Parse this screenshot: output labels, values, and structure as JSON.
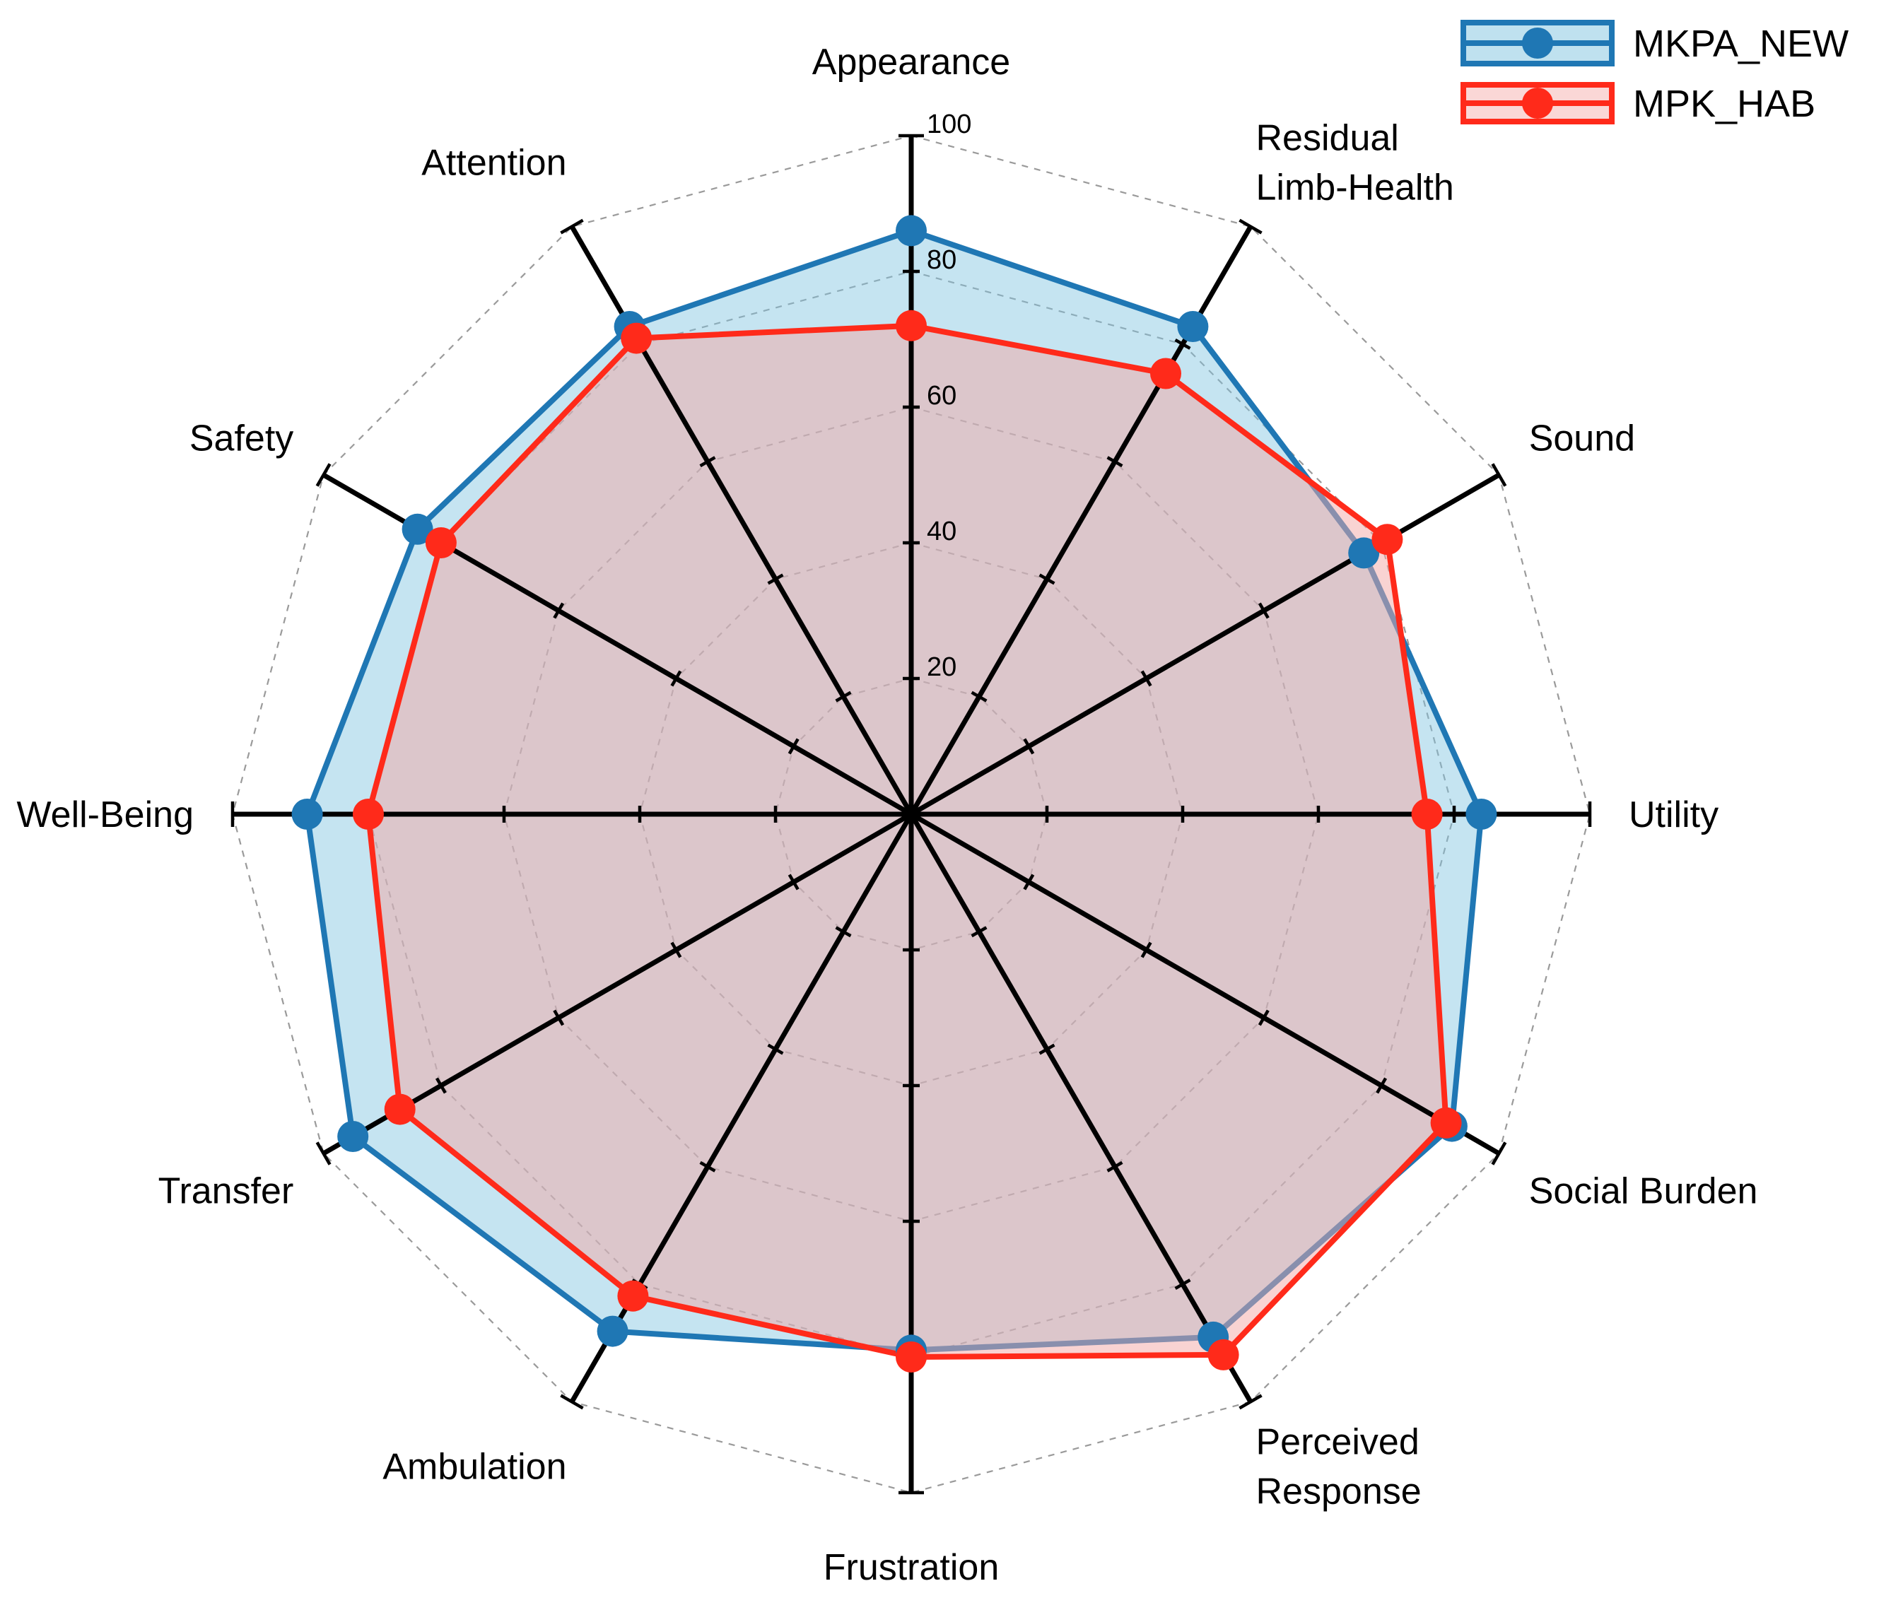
{
  "chart_data": {
    "type": "radar",
    "title": "",
    "axes": [
      "Appearance",
      "Residual Limb-Health",
      "Sound",
      "Utility",
      "Social Burden",
      "Perceived Response",
      "Frustration",
      "Ambulation",
      "Transfer",
      "Well-Being",
      "Safety",
      "Attention"
    ],
    "axis_label_lines": [
      [
        "Appearance"
      ],
      [
        "Residual",
        "Limb-Health"
      ],
      [
        "Sound"
      ],
      [
        "Utility"
      ],
      [
        "Social Burden"
      ],
      [
        "Perceived",
        "Response"
      ],
      [
        "Frustration"
      ],
      [
        "Ambulation"
      ],
      [
        "Transfer"
      ],
      [
        "Well-Being"
      ],
      [
        "Safety"
      ],
      [
        "Attention"
      ]
    ],
    "rlim": [
      0,
      100
    ],
    "ticks": [
      20,
      40,
      60,
      80,
      100
    ],
    "grid": true,
    "legend_position": "top-right",
    "series": [
      {
        "name": "MKPA_NEW",
        "line_color": "#1f77b4",
        "fill_color": "#7fc3df",
        "values": [
          86,
          83,
          77,
          84,
          92,
          89,
          79,
          88,
          95,
          89,
          84,
          83
        ]
      },
      {
        "name": "MPK_HAB",
        "line_color": "#ff2a1a",
        "fill_color": "#f4a7a5",
        "values": [
          72,
          75,
          81,
          76,
          91,
          92,
          80,
          82,
          87,
          80,
          80,
          81
        ]
      }
    ]
  }
}
